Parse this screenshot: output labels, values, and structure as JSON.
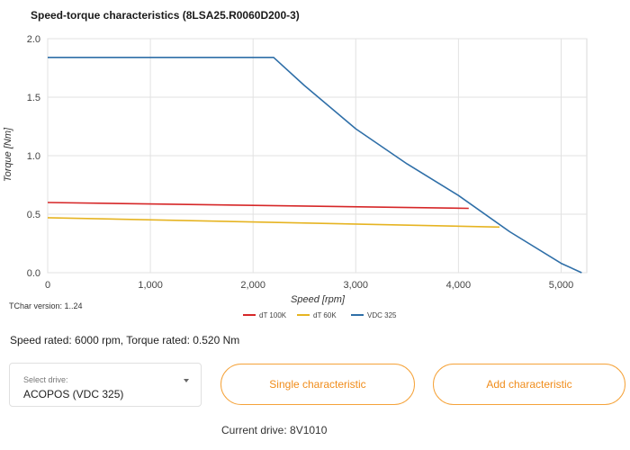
{
  "chart_title": "Speed-torque characteristics (8LSA25.R0060D200-3)",
  "tchar_version": "TChar version: 1..24",
  "summary": "Speed rated: 6000 rpm, Torque rated: 0.520 Nm",
  "drive_select": {
    "label": "Select drive:",
    "value": "ACOPOS (VDC 325)"
  },
  "buttons": {
    "single": "Single characteristic",
    "add": "Add characteristic"
  },
  "current_drive": "Current drive: 8V1010",
  "colors": {
    "red": "#d62728",
    "yellow": "#e6b422",
    "blue": "#2f6fa8",
    "button_accent": "#f08c1a"
  },
  "chart_data": {
    "type": "line",
    "xlabel": "Speed [rpm]",
    "ylabel": "Torque [Nm]",
    "xlim": [
      0,
      5250
    ],
    "ylim": [
      0,
      2.0
    ],
    "x_ticks": [
      0,
      1000,
      2000,
      3000,
      4000,
      5000
    ],
    "x_tick_labels": [
      "0",
      "1,000",
      "2,000",
      "3,000",
      "4,000",
      "5,000"
    ],
    "y_ticks": [
      0,
      0.5,
      1.0,
      1.5,
      2.0
    ],
    "y_tick_labels": [
      "0.0",
      "0.5",
      "1.0",
      "1.5",
      "2.0"
    ],
    "grid": true,
    "legend_position": "bottom",
    "series": [
      {
        "name": "dT 100K",
        "color": "#d62728",
        "points": [
          [
            0,
            0.6
          ],
          [
            4100,
            0.55
          ]
        ]
      },
      {
        "name": "dT 60K",
        "color": "#e6b422",
        "points": [
          [
            0,
            0.47
          ],
          [
            4400,
            0.39
          ]
        ]
      },
      {
        "name": "VDC 325",
        "color": "#2f6fa8",
        "points": [
          [
            0,
            1.84
          ],
          [
            2200,
            1.84
          ],
          [
            2500,
            1.6
          ],
          [
            3000,
            1.23
          ],
          [
            3500,
            0.93
          ],
          [
            4000,
            0.66
          ],
          [
            4500,
            0.35
          ],
          [
            5000,
            0.08
          ],
          [
            5200,
            0.0
          ]
        ]
      }
    ]
  }
}
